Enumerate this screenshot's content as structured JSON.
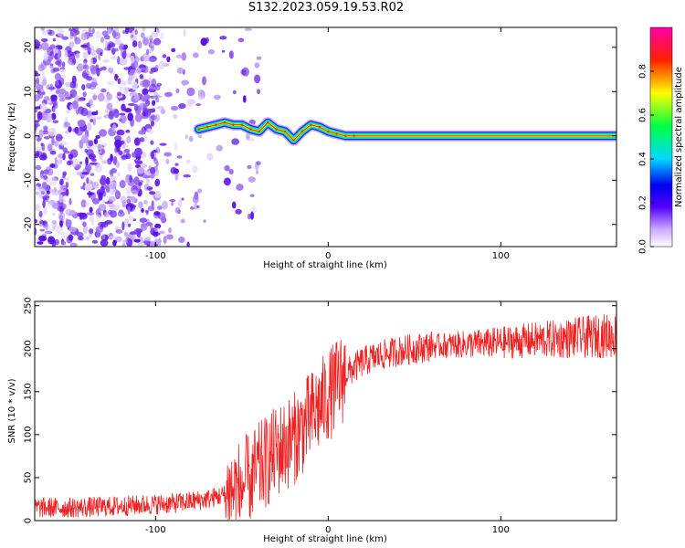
{
  "title": "S132.2023.059.19.53.R02",
  "chart_data": [
    {
      "type": "heatmap",
      "xlabel": "Height of straight line (km)",
      "ylabel": "Frequency (Hz)",
      "xlim": [
        -170,
        167
      ],
      "ylim": [
        -25,
        24.5
      ],
      "xticks": [
        -100,
        0,
        100
      ],
      "yticks": [
        -20,
        -10,
        0,
        10,
        20
      ],
      "colorbar": {
        "label": "Normalized spectral amplitude",
        "range": [
          0,
          1
        ],
        "ticks": [
          "0.0",
          "0.2",
          "0.4",
          "0.6",
          "0.8"
        ]
      },
      "ridge": {
        "x": [
          -75,
          -70,
          -65,
          -60,
          -55,
          -50,
          -45,
          -40,
          -35,
          -30,
          -25,
          -20,
          -15,
          -10,
          -5,
          0,
          5,
          10,
          15,
          167
        ],
        "y": [
          1.5,
          2.0,
          2.5,
          3.0,
          2.5,
          2.5,
          1.5,
          1.0,
          3.0,
          1.5,
          1.0,
          -1.0,
          1.0,
          2.5,
          2.0,
          1.0,
          0.5,
          0.0,
          0.0,
          0.0
        ]
      },
      "noise_region_x": [
        -170,
        -40
      ]
    },
    {
      "type": "line",
      "xlabel": "Height of straight line (km)",
      "ylabel": "SNR (10 * v/v)",
      "xlim": [
        -170,
        167
      ],
      "ylim": [
        0,
        255
      ],
      "xticks": [
        -100,
        0,
        100
      ],
      "yticks": [
        0,
        50,
        100,
        150,
        200,
        250
      ],
      "line_color": "#ee2222",
      "series": [
        {
          "x": [
            -170,
            -150,
            -130,
            -110,
            -90,
            -80,
            -70,
            -60,
            -50,
            -40,
            -30,
            -20,
            -10,
            0,
            10,
            20,
            30,
            40,
            50,
            60,
            80,
            100,
            120,
            140,
            160,
            167
          ],
          "values": [
            15,
            15,
            16,
            18,
            20,
            22,
            25,
            30,
            40,
            60,
            80,
            95,
            120,
            145,
            170,
            185,
            192,
            197,
            200,
            203,
            205,
            207,
            210,
            212,
            215,
            215
          ]
        }
      ]
    }
  ]
}
